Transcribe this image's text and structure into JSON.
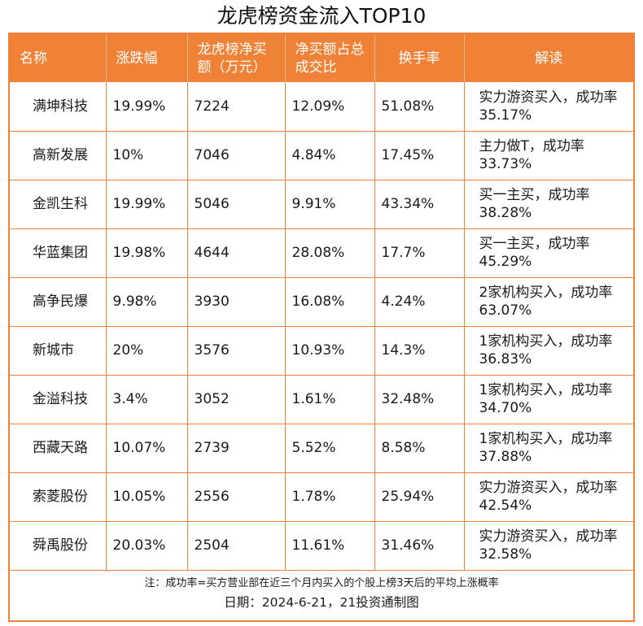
{
  "title": "龙虎榜资金流入TOP10",
  "headers": [
    "名称",
    "涨跌幅",
    "龙虎榜净买额（万元）",
    "净买额占总成交比",
    "换手率",
    "解读"
  ],
  "rows": [
    {
      "name": "满坤科技",
      "change": "19.99%",
      "net_buy": "7224",
      "ratio": "12.09%",
      "turnover": "51.08%",
      "note": "实力游资买入，成功率35.17%"
    },
    {
      "name": "高新发展",
      "change": "10%",
      "net_buy": "7046",
      "ratio": "4.84%",
      "turnover": "17.45%",
      "note": "主力做T，成功率33.73%"
    },
    {
      "name": "金凯生科",
      "change": "19.99%",
      "net_buy": "5046",
      "ratio": "9.91%",
      "turnover": "43.34%",
      "note": "买一主买，成功率38.28%"
    },
    {
      "name": "华蓝集团",
      "change": "19.98%",
      "net_buy": "4644",
      "ratio": "28.08%",
      "turnover": "17.7%",
      "note": "买一主买，成功率45.29%"
    },
    {
      "name": "高争民爆",
      "change": "9.98%",
      "net_buy": "3930",
      "ratio": "16.08%",
      "turnover": "4.24%",
      "note": "2家机构买入，成功率63.07%"
    },
    {
      "name": "新城市",
      "change": "20%",
      "net_buy": "3576",
      "ratio": "10.93%",
      "turnover": "14.3%",
      "note": "1家机构买入，成功率36.83%"
    },
    {
      "name": "金溢科技",
      "change": "3.4%",
      "net_buy": "3052",
      "ratio": "1.61%",
      "turnover": "32.48%",
      "note": "1家机构买入，成功率34.70%"
    },
    {
      "name": "西藏天路",
      "change": "10.07%",
      "net_buy": "2739",
      "ratio": "5.52%",
      "turnover": "8.58%",
      "note": "1家机构买入，成功率37.88%"
    },
    {
      "name": "索菱股份",
      "change": "10.05%",
      "net_buy": "2556",
      "ratio": "1.78%",
      "turnover": "25.94%",
      "note": "实力游资买入，成功率42.54%"
    },
    {
      "name": "舜禹股份",
      "change": "20.03%",
      "net_buy": "2504",
      "ratio": "11.61%",
      "turnover": "31.46%",
      "note": "实力游资买入，成功率32.58%"
    }
  ],
  "footnote": "注：成功率=买方营业部在近三个月内买入的个股上榜3天后的平均上涨概率",
  "date_line": "日期：2024-6-21，21投资通制图",
  "colors": {
    "accent": "#ef8236",
    "header_text": "#ffffff"
  }
}
